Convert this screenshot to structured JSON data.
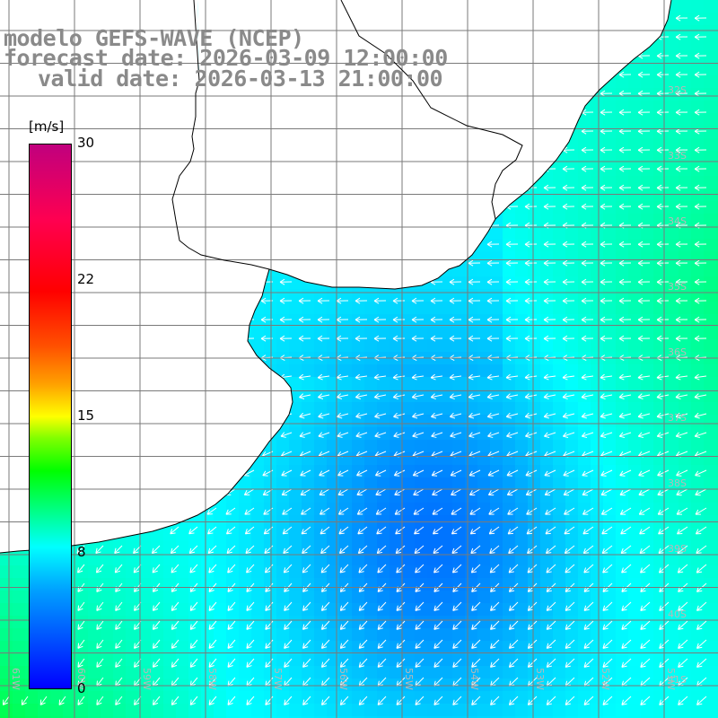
{
  "title": {
    "line1": "modelo GEFS-WAVE (NCEP)",
    "line2": "forecast date: 2026-03-09 12:00:00",
    "line3": "valid date: 2026-03-13 21:00:00"
  },
  "colorbar": {
    "unit": "[m/s]",
    "ticks": [
      {
        "label": "30",
        "value": 30
      },
      {
        "label": "22",
        "value": 22
      },
      {
        "label": "15",
        "value": 15
      },
      {
        "label": "8",
        "value": 8
      },
      {
        "label": "0",
        "value": 0
      }
    ]
  },
  "map": {
    "lat_labels": [
      "32S",
      "33S",
      "34S",
      "35S",
      "36S",
      "37S",
      "38S",
      "39S",
      "40S",
      "41S"
    ],
    "lon_labels": [
      "61W",
      "60W",
      "59W",
      "58W",
      "57W",
      "56W",
      "55W",
      "54W",
      "53W",
      "52W",
      "51W"
    ],
    "colors": {
      "land": "#ffffff",
      "coast": "#000000",
      "grid": "#7a7a7a",
      "arrow": "#ffffff"
    }
  }
}
